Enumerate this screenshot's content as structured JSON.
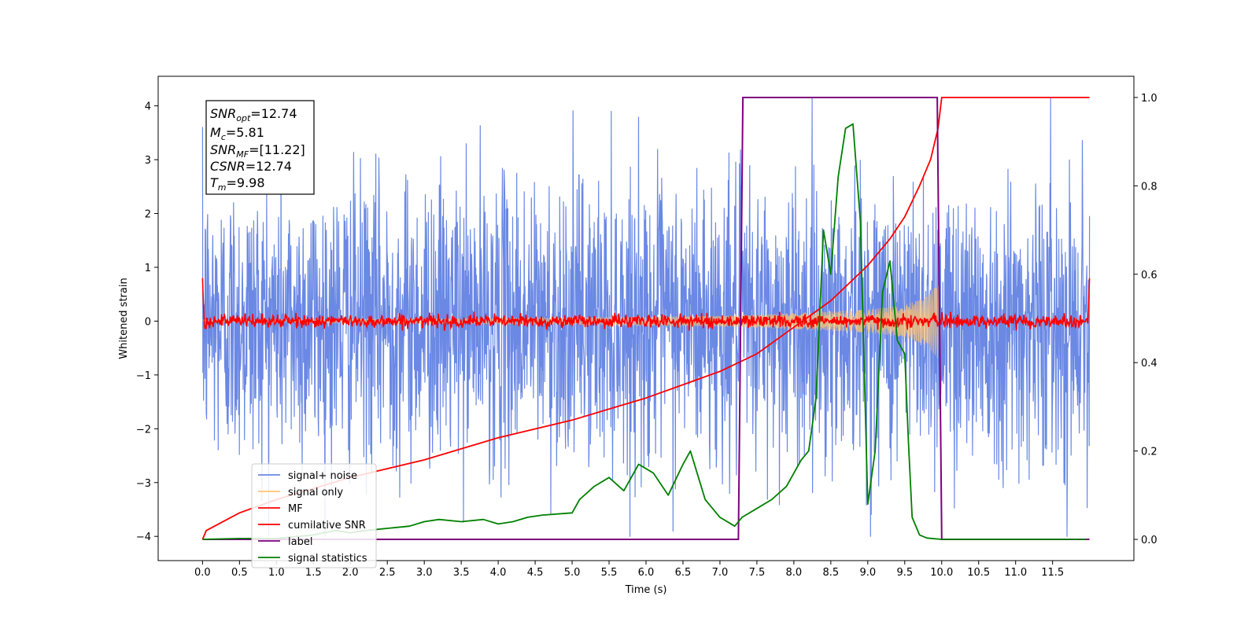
{
  "chart_data": {
    "type": "line",
    "title": "",
    "xlabel": "Time (s)",
    "ylabel": "Whitened strain",
    "xlim": [
      -0.6,
      12.6
    ],
    "ylim": [
      -4.45,
      4.55
    ],
    "y2lim": [
      -0.048,
      1.048
    ],
    "grid": false,
    "legend_position": "lower-left",
    "x_ticks": [
      "0.0",
      "0.5",
      "1.0",
      "1.5",
      "2.0",
      "2.5",
      "3.0",
      "3.5",
      "4.0",
      "4.5",
      "5.0",
      "5.5",
      "6.0",
      "6.5",
      "7.0",
      "7.5",
      "8.0",
      "8.5",
      "9.0",
      "9.5",
      "10.0",
      "10.5",
      "11.0",
      "11.5"
    ],
    "y_ticks": [
      "4",
      "3",
      "2",
      "1",
      "0",
      "−1",
      "−2",
      "−3",
      "−4"
    ],
    "y2_ticks": [
      "1.0",
      "0.8",
      "0.6",
      "0.4",
      "0.2",
      "0.0"
    ],
    "annotation": {
      "snr_opt": {
        "base": "SNR",
        "sub": "opt",
        "value": "=12.74"
      },
      "mc": {
        "base": "M",
        "sub": "c",
        "value": "=5.81"
      },
      "snr_mf": {
        "base": "SNR",
        "sub": "MF",
        "value": "=[11.22]"
      },
      "csnr": {
        "base": "CSNR",
        "sub": "",
        "value": "=12.74"
      },
      "tm": {
        "base": "T",
        "sub": "m",
        "value": "=9.98"
      }
    },
    "series": [
      {
        "name": "signal+ noise",
        "axis": "left",
        "color": "#6a88e4",
        "description": "whitened noise + signal, ~±1.3 rms, peaks to about ±4",
        "x_range": [
          0.0,
          12.0
        ],
        "max": 4.15,
        "min": -4.0
      },
      {
        "name": "signal only",
        "axis": "left",
        "color": "#ffc46f",
        "t_merge": 9.98,
        "envelope": {
          "x": [
            0.0,
            4.0,
            6.0,
            7.0,
            8.0,
            8.5,
            9.0,
            9.5,
            9.8,
            9.98
          ],
          "amp": [
            0.02,
            0.05,
            0.08,
            0.1,
            0.15,
            0.18,
            0.22,
            0.3,
            0.45,
            0.75
          ]
        }
      },
      {
        "name": "MF",
        "axis": "left",
        "color": "#ff0000",
        "description": "matched filter output, small fluctuations around 0",
        "x_range": [
          0.0,
          12.0
        ],
        "amplitude": 0.12
      },
      {
        "name": "cumilative SNR",
        "axis": "right",
        "color": "#ff0000",
        "x": [
          0.0,
          0.05,
          0.5,
          1.0,
          2.0,
          3.0,
          4.0,
          5.0,
          6.0,
          7.0,
          7.5,
          8.0,
          8.5,
          9.0,
          9.3,
          9.5,
          9.7,
          9.85,
          9.95,
          10.0,
          12.0
        ],
        "values": [
          0.0,
          0.02,
          0.06,
          0.09,
          0.14,
          0.18,
          0.23,
          0.27,
          0.32,
          0.38,
          0.42,
          0.48,
          0.54,
          0.62,
          0.68,
          0.73,
          0.8,
          0.86,
          0.93,
          1.0,
          1.0
        ]
      },
      {
        "name": "label",
        "axis": "right",
        "color": "#7f007f",
        "x": [
          0.0,
          7.25,
          7.31,
          9.94,
          10.0,
          12.0
        ],
        "values": [
          0,
          0,
          1,
          1,
          0,
          0
        ]
      },
      {
        "name": "signal statistics",
        "axis": "right",
        "color": "#008000",
        "x": [
          0.0,
          0.5,
          1.0,
          1.5,
          1.8,
          2.0,
          2.2,
          2.5,
          2.8,
          3.0,
          3.2,
          3.5,
          3.8,
          4.0,
          4.2,
          4.4,
          4.6,
          5.0,
          5.1,
          5.3,
          5.5,
          5.7,
          5.9,
          6.1,
          6.3,
          6.5,
          6.6,
          6.8,
          7.0,
          7.2,
          7.3,
          7.5,
          7.7,
          7.9,
          8.0,
          8.1,
          8.2,
          8.3,
          8.4,
          8.5,
          8.6,
          8.7,
          8.8,
          8.9,
          9.0,
          9.1,
          9.2,
          9.3,
          9.4,
          9.5,
          9.55,
          9.6,
          9.7,
          9.8,
          10.0,
          11.0,
          11.95
        ],
        "values": [
          0.0,
          0.002,
          0.002,
          0.01,
          0.02,
          0.015,
          0.02,
          0.025,
          0.03,
          0.04,
          0.045,
          0.04,
          0.045,
          0.035,
          0.04,
          0.05,
          0.055,
          0.06,
          0.09,
          0.12,
          0.14,
          0.11,
          0.17,
          0.15,
          0.1,
          0.17,
          0.2,
          0.09,
          0.05,
          0.03,
          0.05,
          0.07,
          0.09,
          0.12,
          0.15,
          0.18,
          0.2,
          0.32,
          0.7,
          0.6,
          0.82,
          0.93,
          0.94,
          0.72,
          0.08,
          0.2,
          0.56,
          0.63,
          0.45,
          0.42,
          0.22,
          0.05,
          0.01,
          0.003,
          0.0,
          0.0,
          0.0
        ]
      }
    ]
  }
}
